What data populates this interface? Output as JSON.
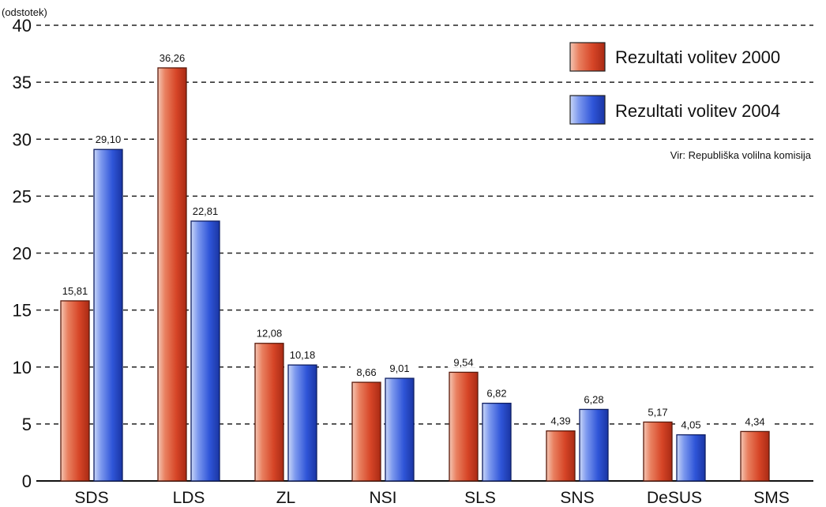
{
  "chart_data": {
    "type": "bar",
    "unit_label": "(odstotek)",
    "categories": [
      "SDS",
      "LDS",
      "ZL",
      "NSI",
      "SLS",
      "SNS",
      "DeSUS",
      "SMS"
    ],
    "series": [
      {
        "name": "Rezultati volitev 2000",
        "values": [
          15.81,
          36.26,
          12.08,
          8.66,
          9.54,
          4.39,
          5.17,
          4.34
        ],
        "labels": [
          "15,81",
          "36,26",
          "12,08",
          "8,66",
          "9,54",
          "4,39",
          "5,17",
          "4,34"
        ],
        "color": "#d9472b"
      },
      {
        "name": "Rezultati volitev 2004",
        "values": [
          29.1,
          22.81,
          10.18,
          9.01,
          6.82,
          6.28,
          4.05,
          null
        ],
        "labels": [
          "29,10",
          "22,81",
          "10,18",
          "9,01",
          "6,82",
          "6,28",
          "4,05",
          ""
        ],
        "color": "#2d54d6"
      }
    ],
    "ylim": [
      0,
      40
    ],
    "yticks": [
      "0",
      "5",
      "10",
      "15",
      "20",
      "25",
      "30",
      "35",
      "40"
    ],
    "grid": "dashed-horizontal",
    "legend_position": "top-right",
    "source": "Vir: Republiška volilna komisija"
  }
}
